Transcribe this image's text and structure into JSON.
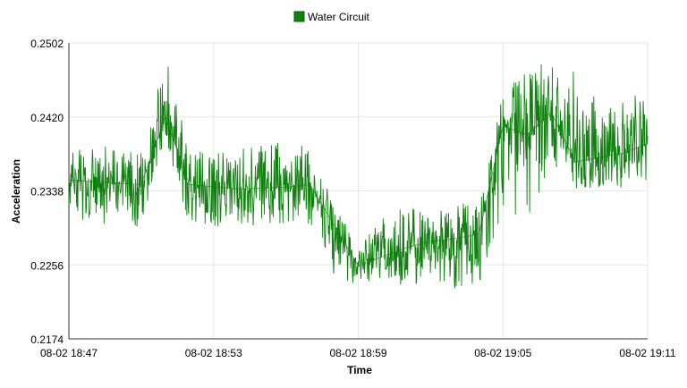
{
  "chart_data": {
    "type": "line",
    "xlabel": "Time",
    "ylabel": "Acceleration",
    "ylim": [
      0.2174,
      0.2502
    ],
    "xlim": [
      "08-02 18:47",
      "08-02 19:11"
    ],
    "x_ticks": [
      "08-02 18:47",
      "08-02 18:53",
      "08-02 18:59",
      "08-02 19:05",
      "08-02 19:11"
    ],
    "y_ticks": [
      "0.2174",
      "0.2256",
      "0.2338",
      "0.2420",
      "0.2502"
    ],
    "grid": true,
    "legend_position": "top-center",
    "series": [
      {
        "name": "Water Circuit",
        "color": "#108010",
        "x": [
          "08-02 18:47",
          "08-02 18:48",
          "08-02 18:50",
          "08-02 18:51",
          "08-02 18:52",
          "08-02 18:54",
          "08-02 18:56",
          "08-02 18:57",
          "08-02 18:58",
          "08-02 18:59",
          "08-02 19:00",
          "08-02 19:01",
          "08-02 19:02",
          "08-02 19:03",
          "08-02 19:04",
          "08-02 19:05",
          "08-02 19:06",
          "08-02 19:07",
          "08-02 19:08",
          "08-02 19:09",
          "08-02 19:10",
          "08-02 19:11"
        ],
        "values": [
          0.235,
          0.2348,
          0.2345,
          0.242,
          0.2345,
          0.234,
          0.2342,
          0.2345,
          0.23,
          0.2255,
          0.2265,
          0.2275,
          0.2282,
          0.2285,
          0.229,
          0.241,
          0.24,
          0.2425,
          0.237,
          0.2375,
          0.238,
          0.239
        ],
        "range_low": [
          0.231,
          0.2298,
          0.2298,
          0.2395,
          0.2298,
          0.2298,
          0.2302,
          0.23,
          0.2245,
          0.223,
          0.224,
          0.223,
          0.224,
          0.223,
          0.222,
          0.232,
          0.23,
          0.237,
          0.234,
          0.234,
          0.234,
          0.235
        ],
        "range_high": [
          0.238,
          0.239,
          0.238,
          0.2495,
          0.2385,
          0.2385,
          0.2395,
          0.2385,
          0.2325,
          0.2275,
          0.231,
          0.232,
          0.232,
          0.233,
          0.232,
          0.245,
          0.247,
          0.249,
          0.247,
          0.2435,
          0.244,
          0.245
        ]
      }
    ]
  }
}
